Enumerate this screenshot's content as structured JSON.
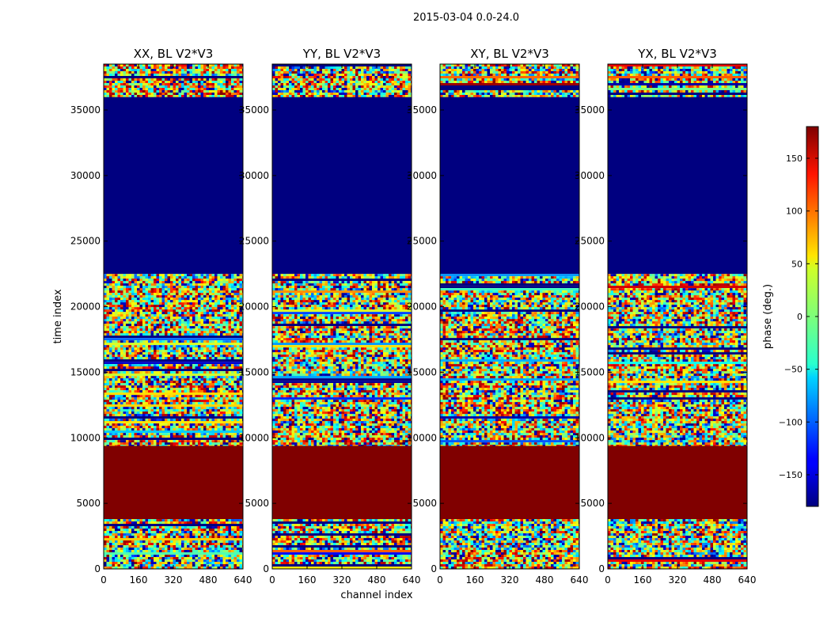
{
  "figure_title": "2015-03-04 0.0-24.0",
  "chart_data": {
    "type": "heatmap",
    "suptitle": "2015-03-04 0.0-24.0",
    "xlabel": "channel index",
    "ylabel": "time index",
    "xlim": [
      0,
      640
    ],
    "ylim": [
      0,
      38500
    ],
    "xticks": [
      0,
      160,
      320,
      480,
      640
    ],
    "yticks": [
      0,
      5000,
      10000,
      15000,
      20000,
      25000,
      30000,
      35000
    ],
    "panels": [
      {
        "title": "XX, BL V2*V3"
      },
      {
        "title": "YY, BL V2*V3"
      },
      {
        "title": "XY, BL V2*V3"
      },
      {
        "title": "YX, BL V2*V3"
      }
    ],
    "time_segments": [
      {
        "from": 0,
        "to": 3800,
        "phase": "noisy"
      },
      {
        "from": 3800,
        "to": 9400,
        "phase": 180
      },
      {
        "from": 9400,
        "to": 22500,
        "phase": "noisy"
      },
      {
        "from": 22500,
        "to": 36000,
        "phase": -180
      },
      {
        "from": 36000,
        "to": 38500,
        "phase": "noisy"
      }
    ],
    "colorbar": {
      "label": "phase (deg.)",
      "min": -180,
      "max": 180,
      "ticks": [
        -150,
        -100,
        -50,
        0,
        50,
        100,
        150
      ],
      "colormap": "jet"
    }
  }
}
